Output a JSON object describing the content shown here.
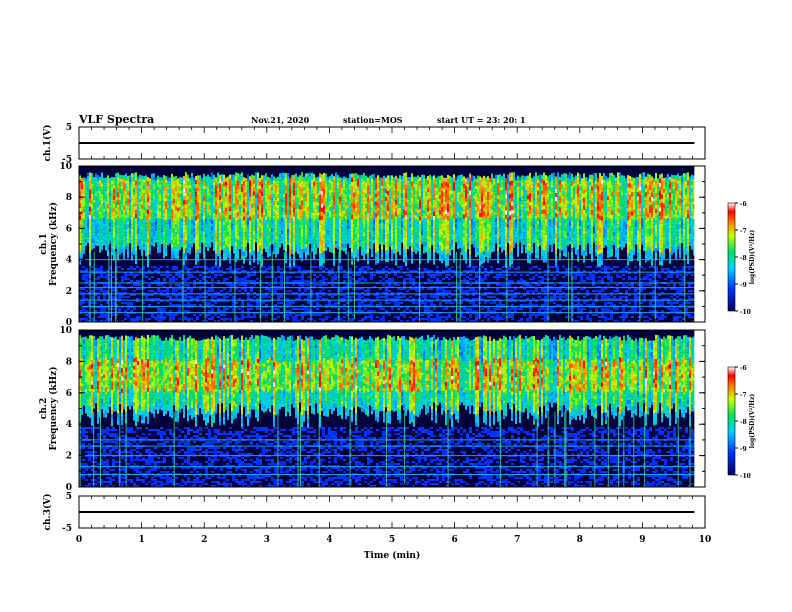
{
  "header": {
    "title": "VLF Spectra",
    "date": "Nov.21, 2020",
    "station": "station=MOS",
    "start_ut": "start  UT =   23: 20: 1"
  },
  "chart_data": [
    {
      "type": "line",
      "panel": "ch1-waveform",
      "ylabel": "ch.1(V)",
      "ylim": [
        -5,
        5
      ],
      "ytick_labels": [
        "5",
        "-5"
      ],
      "series": [
        {
          "name": "",
          "x": [
            0,
            9.83
          ],
          "y": [
            0,
            0
          ]
        }
      ]
    },
    {
      "type": "heatmap",
      "panel": "ch1-spectrogram",
      "ylabel_lines": [
        "ch.1",
        "Frequency  (kHz)"
      ],
      "ylim": [
        0,
        10
      ],
      "ytick_labels": [
        "0",
        "2",
        "4",
        "6",
        "8",
        "10"
      ],
      "x_range": [
        0,
        9.83
      ],
      "band_hz": [
        3.5,
        9.6
      ],
      "peak_band_khz": [
        6.5,
        9.0
      ],
      "horizontal_lines_khz": [
        0.6,
        1.0,
        1.4,
        1.8,
        2.2,
        2.5,
        3.2,
        4.0
      ],
      "colorbar": {
        "label": "log(PSD)(V²/Hz)",
        "range": [
          -10,
          -6
        ],
        "ticks": [
          "-6",
          "-7",
          "-8",
          "-9",
          "-10"
        ]
      }
    },
    {
      "type": "heatmap",
      "panel": "ch2-spectrogram",
      "ylabel_lines": [
        "ch.2",
        "Frequency  (kHz)"
      ],
      "ylim": [
        0,
        10
      ],
      "ytick_labels": [
        "0",
        "2",
        "4",
        "6",
        "8",
        "10"
      ],
      "x_range": [
        0,
        9.83
      ],
      "band_hz": [
        3.8,
        9.7
      ],
      "peak_band_khz": [
        6.0,
        8.0
      ],
      "horizontal_lines_khz": [
        0.8,
        1.3,
        2.0,
        2.6,
        3.0
      ],
      "colorbar": {
        "label": "log(PSD)(V²/Hz)",
        "range": [
          -10,
          -6
        ],
        "ticks": [
          "-6",
          "-7",
          "-8",
          "-9",
          "-10"
        ]
      }
    },
    {
      "type": "line",
      "panel": "ch3-waveform",
      "ylabel": "ch.3(V)",
      "ylim": [
        -5,
        5
      ],
      "ytick_labels": [
        "5",
        "-5"
      ],
      "series": [
        {
          "name": "",
          "x": [
            0,
            9.83
          ],
          "y": [
            0,
            0
          ]
        }
      ]
    }
  ],
  "xaxis": {
    "label": "Time  (min)",
    "range": [
      0,
      10
    ],
    "tick_labels": [
      "0",
      "1",
      "2",
      "3",
      "4",
      "5",
      "6",
      "7",
      "8",
      "9",
      "10"
    ]
  }
}
